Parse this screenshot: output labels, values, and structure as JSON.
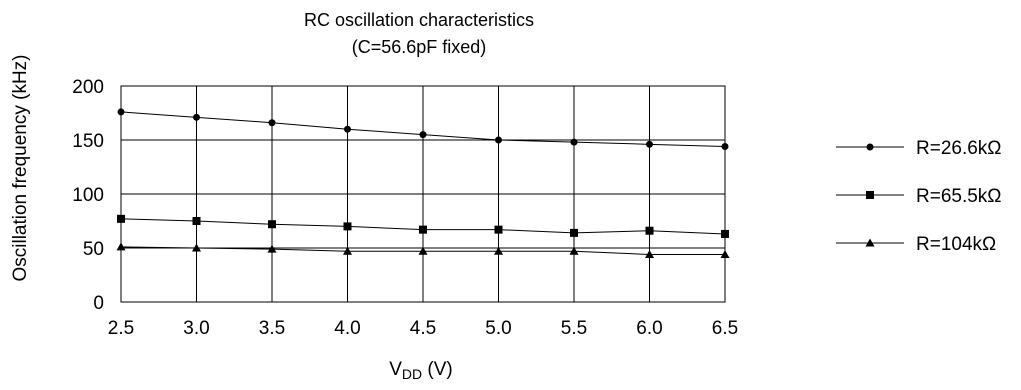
{
  "chart_data": {
    "type": "line",
    "title": "RC oscillation characteristics",
    "subtitle": "(C=56.6pF fixed)",
    "xlabel_main": "V",
    "xlabel_sub": "DD",
    "xlabel_unit": " (V)",
    "ylabel": "Oscillation frequency (kHz)",
    "x": [
      2.5,
      3.0,
      3.5,
      4.0,
      4.5,
      5.0,
      5.5,
      6.0,
      6.5
    ],
    "x_tick_labels": [
      "2.5",
      "3.0",
      "3.5",
      "4.0",
      "4.5",
      "5.0",
      "5.5",
      "6.0",
      "6.5"
    ],
    "y_tick_labels": [
      "0",
      "50",
      "100",
      "150",
      "200"
    ],
    "y_ticks": [
      0,
      50,
      100,
      150,
      200
    ],
    "xlim": [
      2.5,
      6.5
    ],
    "ylim": [
      0,
      200
    ],
    "grid": true,
    "legend_position": "right",
    "series": [
      {
        "name": "R=26.6kΩ",
        "marker": "circle",
        "values": [
          176,
          171,
          166,
          160,
          155,
          150,
          148,
          146,
          144
        ]
      },
      {
        "name": "R=65.5kΩ",
        "marker": "square",
        "values": [
          77,
          75,
          72,
          70,
          67,
          67,
          64,
          66,
          63
        ]
      },
      {
        "name": "R=104kΩ",
        "marker": "triangle",
        "values": [
          51,
          50,
          49,
          47,
          47,
          47,
          47,
          44,
          44
        ]
      }
    ]
  }
}
